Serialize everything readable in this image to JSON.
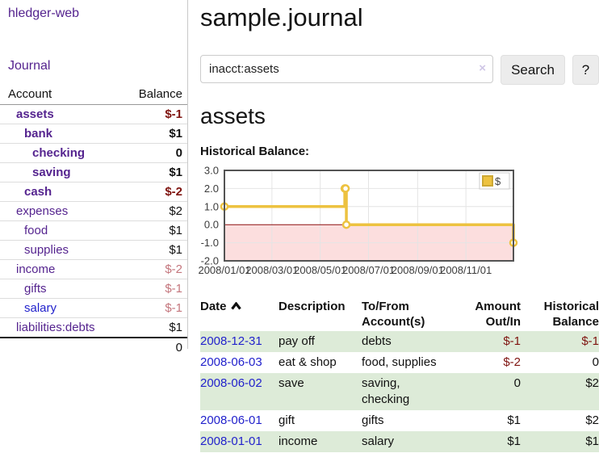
{
  "app": {
    "title": "hledger-web"
  },
  "sidebar": {
    "journal_link": "Journal",
    "columns": {
      "account": "Account",
      "balance": "Balance"
    },
    "accounts": [
      {
        "name": "assets",
        "balance": "$-1",
        "indent": 1,
        "bold": true,
        "balance_class": "neg-strong"
      },
      {
        "name": "bank",
        "balance": "$1",
        "indent": 2,
        "bold": true,
        "balance_class": ""
      },
      {
        "name": "checking",
        "balance": "0",
        "indent": 3,
        "bold": true,
        "balance_class": ""
      },
      {
        "name": "saving",
        "balance": "$1",
        "indent": 3,
        "bold": true,
        "balance_class": ""
      },
      {
        "name": "cash",
        "balance": "$-2",
        "indent": 2,
        "bold": true,
        "balance_class": "neg-strong"
      },
      {
        "name": "expenses",
        "balance": "$2",
        "indent": 1,
        "bold": false,
        "balance_class": ""
      },
      {
        "name": "food",
        "balance": "$1",
        "indent": 2,
        "bold": false,
        "balance_class": ""
      },
      {
        "name": "supplies",
        "balance": "$1",
        "indent": 2,
        "bold": false,
        "balance_class": ""
      },
      {
        "name": "income",
        "balance": "$-2",
        "indent": 1,
        "bold": false,
        "balance_class": "neg-muted"
      },
      {
        "name": "gifts",
        "balance": "$-1",
        "indent": 2,
        "bold": false,
        "balance_class": "neg-muted"
      },
      {
        "name": "salary",
        "balance": "$-1",
        "indent": 2,
        "bold": false,
        "balance_class": "neg-muted",
        "link_color": "blue"
      },
      {
        "name": "liabilities:debts",
        "balance": "$1",
        "indent": 1,
        "bold": false,
        "balance_class": ""
      }
    ],
    "total": "0"
  },
  "main": {
    "title": "sample.journal",
    "heading": "assets",
    "chart_label": "Historical Balance:"
  },
  "search": {
    "value": "inacct:assets",
    "clear_icon": "×",
    "button": "Search",
    "help_button": "?"
  },
  "register": {
    "columns": [
      {
        "label": "Date",
        "sorted": "asc"
      },
      {
        "label": "Description"
      },
      {
        "label": "To/From Account(s)"
      },
      {
        "label": "Amount Out/In"
      },
      {
        "label": "Historical Balance"
      }
    ],
    "rows": [
      {
        "date": "2008-12-31",
        "description": "pay off",
        "accounts": "debts",
        "amount": "$-1",
        "balance": "$-1"
      },
      {
        "date": "2008-06-03",
        "description": "eat & shop",
        "accounts": "food, supplies",
        "amount": "$-2",
        "balance": "0"
      },
      {
        "date": "2008-06-02",
        "description": "save",
        "accounts": "saving, checking",
        "amount": "0",
        "balance": "$2"
      },
      {
        "date": "2008-06-01",
        "description": "gift",
        "accounts": "gifts",
        "amount": "$1",
        "balance": "$2"
      },
      {
        "date": "2008-01-01",
        "description": "income",
        "accounts": "salary",
        "amount": "$1",
        "balance": "$1"
      }
    ]
  },
  "chart_data": {
    "type": "line",
    "steps": true,
    "title": "Historical Balance",
    "series": [
      {
        "name": "$",
        "color": "#edc240",
        "points": [
          [
            "2008-01-01",
            1
          ],
          [
            "2008-06-01",
            2
          ],
          [
            "2008-06-02",
            2
          ],
          [
            "2008-06-03",
            0
          ],
          [
            "2008-12-31",
            -1
          ]
        ]
      }
    ],
    "xlim": [
      "2008-01-01",
      "2008-12-31"
    ],
    "ylim": [
      -2,
      3
    ],
    "x_ticks": [
      "2008/01/01",
      "2008/03/01",
      "2008/05/01",
      "2008/07/01",
      "2008/09/01",
      "2008/11/01"
    ],
    "y_ticks": [
      3.0,
      2.0,
      1.0,
      0.0,
      -1.0,
      -2.0
    ],
    "grid": true,
    "legend_position": "top-right",
    "negative_region_color": "#fcdede",
    "zero_line_color": "#8b1010"
  },
  "colors": {
    "link_purple": "#55248f",
    "link_blue": "#2222cc",
    "negative_strong": "#7f1410",
    "negative_muted": "#c4767d",
    "row_green": "#ddebd8",
    "series_gold": "#edc240",
    "button_gray": "#ececec"
  }
}
